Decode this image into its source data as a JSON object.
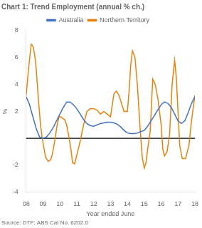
{
  "chart_data": {
    "type": "line",
    "title": "Chart 1: Trend Employment (annual % ch.)",
    "x_label": "Year ended June",
    "y_label": "%",
    "source": "Source: DTF; ABS Cat No. 6202.0",
    "xlim": [
      2008,
      2018
    ],
    "xticks": [
      {
        "value": 2008,
        "label": "08"
      },
      {
        "value": 2009,
        "label": "09"
      },
      {
        "value": 2010,
        "label": "10"
      },
      {
        "value": 2011,
        "label": "11"
      },
      {
        "value": 2012,
        "label": "12"
      },
      {
        "value": 2013,
        "label": "13"
      },
      {
        "value": 2014,
        "label": "14"
      },
      {
        "value": 2015,
        "label": "15"
      },
      {
        "value": 2016,
        "label": "16"
      },
      {
        "value": 2017,
        "label": "17"
      },
      {
        "value": 2018,
        "label": "18"
      }
    ],
    "ylim": [
      -4,
      8
    ],
    "yticks": [
      -4,
      -2,
      2,
      4,
      6,
      8
    ],
    "grid": false,
    "legend": "top",
    "series": [
      {
        "name": "Australia",
        "color": "#4472C4",
        "x": [
          2008.0,
          2008.2,
          2008.4,
          2008.6,
          2008.8,
          2009.0,
          2009.2,
          2009.4,
          2009.6,
          2009.8,
          2010.0,
          2010.2,
          2010.4,
          2010.6,
          2010.8,
          2011.0,
          2011.2,
          2011.4,
          2011.6,
          2011.8,
          2012.0,
          2012.2,
          2012.4,
          2012.6,
          2012.8,
          2013.0,
          2013.2,
          2013.4,
          2013.6,
          2013.8,
          2014.0,
          2014.2,
          2014.4,
          2014.6,
          2014.8,
          2015.0,
          2015.2,
          2015.4,
          2015.6,
          2015.8,
          2016.0,
          2016.2,
          2016.4,
          2016.6,
          2016.8,
          2017.0,
          2017.2,
          2017.4,
          2017.6,
          2017.8,
          2018.0
        ],
        "values": [
          3.1,
          2.5,
          1.6,
          0.7,
          0.1,
          0.0,
          0.1,
          0.4,
          0.8,
          1.3,
          1.8,
          2.3,
          2.7,
          2.7,
          2.5,
          2.2,
          1.8,
          1.4,
          1.1,
          0.95,
          0.9,
          1.0,
          1.1,
          1.15,
          1.2,
          1.2,
          1.15,
          1.05,
          0.85,
          0.6,
          0.4,
          0.35,
          0.35,
          0.4,
          0.5,
          0.6,
          0.9,
          1.3,
          1.7,
          2.1,
          2.5,
          2.7,
          2.6,
          2.3,
          1.8,
          1.3,
          1.1,
          1.3,
          1.9,
          2.6,
          3.1
        ]
      },
      {
        "name": "Northern Territory",
        "color": "#E8820A",
        "x": [
          2008.0,
          2008.15,
          2008.3,
          2008.42,
          2008.55,
          2008.65,
          2008.75,
          2008.85,
          2008.95,
          2009.05,
          2009.15,
          2009.3,
          2009.45,
          2009.55,
          2009.65,
          2009.75,
          2009.85,
          2009.95,
          2010.05,
          2010.15,
          2010.28,
          2010.4,
          2010.52,
          2010.65,
          2010.75,
          2010.87,
          2010.95,
          2011.05,
          2011.2,
          2011.4,
          2011.6,
          2011.8,
          2012.0,
          2012.2,
          2012.4,
          2012.6,
          2012.8,
          2013.0,
          2013.2,
          2013.35,
          2013.5,
          2013.65,
          2013.8,
          2014.0,
          2014.1,
          2014.2,
          2014.3,
          2014.45,
          2014.6,
          2014.75,
          2014.88,
          2015.0,
          2015.1,
          2015.2,
          2015.35,
          2015.5,
          2015.65,
          2015.8,
          2016.0,
          2016.1,
          2016.2,
          2016.35,
          2016.5,
          2016.65,
          2016.8,
          2016.9,
          2017.0,
          2017.1,
          2017.25,
          2017.45,
          2017.65,
          2017.8,
          2018.0
        ],
        "values": [
          3.2,
          5.3,
          7.0,
          6.8,
          5.8,
          4.2,
          2.5,
          1.0,
          0.0,
          -0.7,
          -1.4,
          -1.7,
          -1.6,
          -1.2,
          -0.5,
          0.3,
          1.1,
          1.6,
          1.6,
          1.5,
          1.4,
          1.0,
          0.2,
          -0.8,
          -1.8,
          -1.9,
          -1.5,
          -1.0,
          -0.2,
          1.0,
          2.0,
          2.2,
          2.2,
          2.1,
          1.8,
          2.0,
          1.8,
          1.6,
          3.3,
          3.5,
          3.2,
          2.6,
          2.0,
          2.0,
          3.5,
          5.5,
          6.5,
          6.0,
          3.8,
          0.8,
          -1.4,
          -2.2,
          -1.8,
          -0.8,
          0.5,
          4.4,
          4.0,
          3.0,
          1.0,
          -0.8,
          -1.3,
          -1.0,
          0.3,
          4.0,
          5.8,
          4.5,
          2.0,
          -0.5,
          -1.5,
          -1.5,
          -0.5,
          1.3,
          3.2
        ]
      }
    ]
  }
}
